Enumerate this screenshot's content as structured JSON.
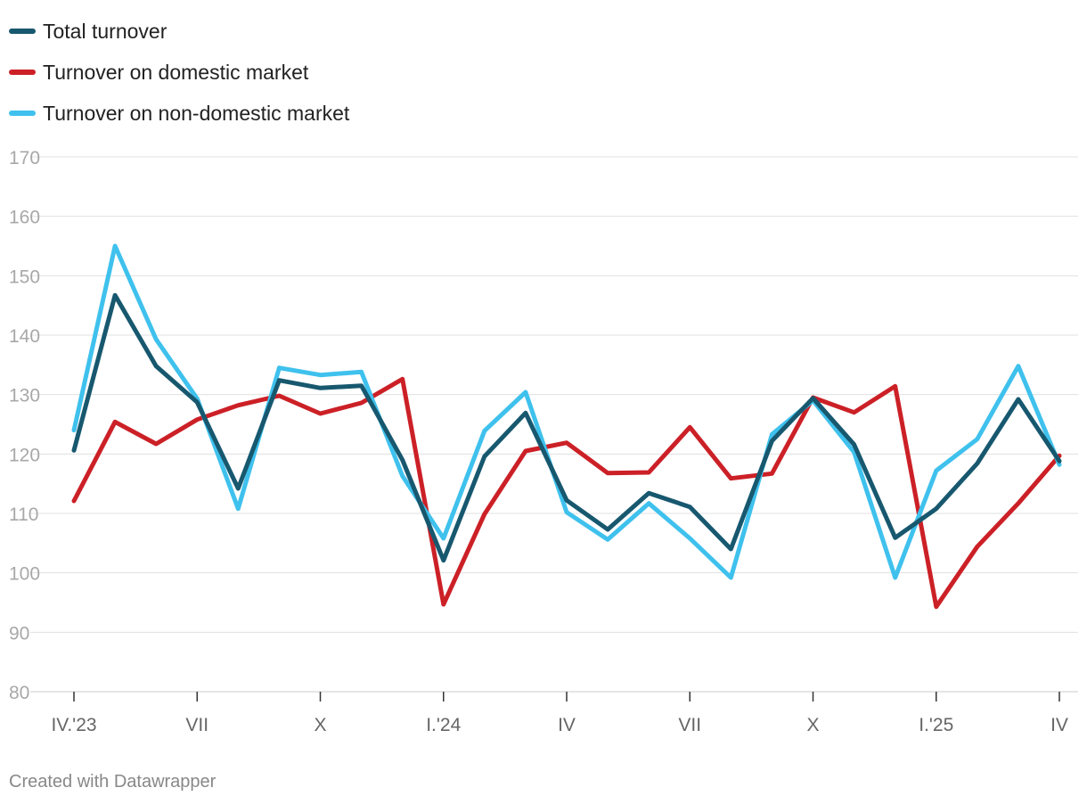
{
  "chart_data": {
    "type": "line",
    "x": [
      "IV.'23",
      "V",
      "VI",
      "VII",
      "VIII",
      "IX",
      "X",
      "XI",
      "XII",
      "I.'24",
      "II",
      "III",
      "IV",
      "V",
      "VI",
      "VII",
      "VIII",
      "IX",
      "X",
      "XI",
      "XII",
      "I.'25",
      "II",
      "III",
      "IV"
    ],
    "x_tick_labels": [
      {
        "index": 0,
        "label": "IV.'23"
      },
      {
        "index": 3,
        "label": "VII"
      },
      {
        "index": 6,
        "label": "X"
      },
      {
        "index": 9,
        "label": "I.'24"
      },
      {
        "index": 12,
        "label": "IV"
      },
      {
        "index": 15,
        "label": "VII"
      },
      {
        "index": 18,
        "label": "X"
      },
      {
        "index": 21,
        "label": "I.'25"
      },
      {
        "index": 24,
        "label": "IV"
      }
    ],
    "y_ticks": [
      80,
      90,
      100,
      110,
      120,
      130,
      140,
      150,
      160,
      170
    ],
    "ylim": [
      80,
      170
    ],
    "grid": true,
    "legend_position": "top-left",
    "series": [
      {
        "name": "Turnover on domestic market",
        "color": "#cc2027",
        "values": [
          112.1,
          125.4,
          121.7,
          125.8,
          128.2,
          129.8,
          126.8,
          128.6,
          132.6,
          94.7,
          109.9,
          120.5,
          121.9,
          116.8,
          116.9,
          124.5,
          115.9,
          116.7,
          129.5,
          127.0,
          131.4,
          94.3,
          104.4,
          111.7,
          119.7
        ]
      },
      {
        "name": "Turnover on non-domestic market",
        "color": "#3fc1ed",
        "values": [
          124.0,
          155.0,
          139.3,
          129.3,
          110.8,
          134.5,
          133.3,
          133.8,
          116.3,
          105.8,
          123.9,
          130.4,
          110.2,
          105.6,
          111.7,
          105.8,
          99.2,
          123.3,
          129.0,
          120.3,
          99.2,
          117.2,
          122.5,
          134.8,
          118.2
        ]
      },
      {
        "name": "Total turnover",
        "color": "#17586f",
        "values": [
          120.6,
          146.7,
          134.8,
          128.7,
          114.2,
          132.4,
          131.1,
          131.5,
          119.0,
          102.1,
          119.6,
          126.9,
          112.2,
          107.3,
          113.4,
          111.1,
          104.0,
          122.2,
          129.4,
          121.6,
          105.9,
          110.8,
          118.4,
          129.2,
          118.8
        ]
      }
    ]
  },
  "legend": [
    {
      "label": "Total turnover",
      "color": "#17586f"
    },
    {
      "label": "Turnover on domestic market",
      "color": "#cc2027"
    },
    {
      "label": "Turnover on non-domestic market",
      "color": "#3fc1ed"
    }
  ],
  "footer": "Created with Datawrapper"
}
